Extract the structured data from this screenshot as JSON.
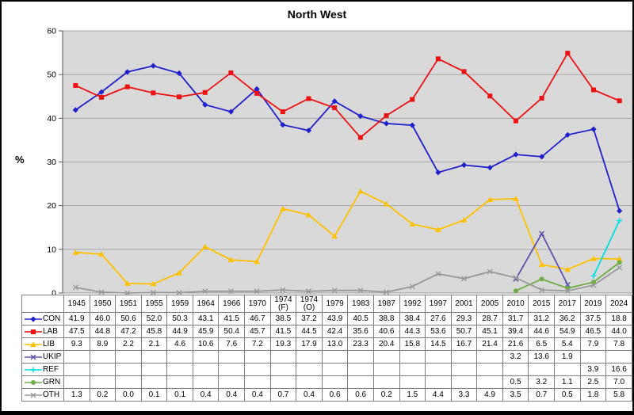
{
  "title": "North West",
  "ylabel": "%",
  "chart_data": {
    "type": "line",
    "title": "North West",
    "xlabel": "",
    "ylabel": "%",
    "ylim": [
      0,
      60
    ],
    "yticks": [
      0,
      10,
      20,
      30,
      40,
      50,
      60
    ],
    "grid": true,
    "plot_bg": "#d9d9d9",
    "gridline_color": "#a6a6a6",
    "axis_color": "#555555",
    "legend_position": "table-left",
    "categories": [
      "1945",
      "1950",
      "1951",
      "1955",
      "1959",
      "1964",
      "1966",
      "1970",
      "1974 (F)",
      "1974 (O)",
      "1979",
      "1983",
      "1987",
      "1992",
      "1997",
      "2001",
      "2005",
      "2010",
      "2015",
      "2017",
      "2019",
      "2024"
    ],
    "series": [
      {
        "name": "CON",
        "color": "#2020cc",
        "marker": "diamond",
        "values": [
          41.9,
          46.0,
          50.6,
          52.0,
          50.3,
          43.1,
          41.5,
          46.7,
          38.5,
          37.2,
          43.9,
          40.5,
          38.8,
          38.4,
          27.6,
          29.3,
          28.7,
          31.7,
          31.2,
          36.2,
          37.5,
          18.8
        ],
        "cells": [
          "41.9",
          "46.0",
          "50.6",
          "52.0",
          "50.3",
          "43.1",
          "41.5",
          "46.7",
          "38.5",
          "37.2",
          "43.9",
          "40.5",
          "38.8",
          "38.4",
          "27.6",
          "29.3",
          "28.7",
          "31.7",
          "31.2",
          "36.2",
          "37.5",
          "18.8"
        ]
      },
      {
        "name": "LAB",
        "color": "#ee1111",
        "marker": "square",
        "values": [
          47.5,
          44.8,
          47.2,
          45.8,
          44.9,
          45.9,
          50.4,
          45.7,
          41.5,
          44.5,
          42.4,
          35.6,
          40.6,
          44.3,
          53.6,
          50.7,
          45.1,
          39.4,
          44.6,
          54.9,
          46.5,
          44.0
        ],
        "cells": [
          "47.5",
          "44.8",
          "47.2",
          "45.8",
          "44.9",
          "45.9",
          "50.4",
          "45.7",
          "41.5",
          "44.5",
          "42.4",
          "35.6",
          "40.6",
          "44.3",
          "53.6",
          "50.7",
          "45.1",
          "39.4",
          "44.6",
          "54.9",
          "46.5",
          "44.0"
        ]
      },
      {
        "name": "LIB",
        "color": "#ffc000",
        "marker": "triangle",
        "values": [
          9.3,
          8.9,
          2.2,
          2.1,
          4.6,
          10.6,
          7.6,
          7.2,
          19.3,
          17.9,
          13.0,
          23.3,
          20.4,
          15.8,
          14.5,
          16.7,
          21.4,
          21.6,
          6.5,
          5.4,
          7.9,
          7.8
        ],
        "cells": [
          "9.3",
          "8.9",
          "2.2",
          "2.1",
          "4.6",
          "10.6",
          "7.6",
          "7.2",
          "19.3",
          "17.9",
          "13.0",
          "23.3",
          "20.4",
          "15.8",
          "14.5",
          "16.7",
          "21.4",
          "21.6",
          "6.5",
          "5.4",
          "7.9",
          "7.8"
        ]
      },
      {
        "name": "UKIP",
        "color": "#5b51a8",
        "marker": "x",
        "values": [
          null,
          null,
          null,
          null,
          null,
          null,
          null,
          null,
          null,
          null,
          null,
          null,
          null,
          null,
          null,
          null,
          null,
          3.2,
          13.6,
          1.9,
          null,
          null
        ],
        "cells": [
          "",
          "",
          "",
          "",
          "",
          "",
          "",
          "",
          "",
          "",
          "",
          "",
          "",
          "",
          "",
          "",
          "",
          "3.2",
          "13.6",
          "1.9",
          "",
          ""
        ]
      },
      {
        "name": "REF",
        "color": "#00e0e0",
        "marker": "plus",
        "values": [
          null,
          null,
          null,
          null,
          null,
          null,
          null,
          null,
          null,
          null,
          null,
          null,
          null,
          null,
          null,
          null,
          null,
          null,
          null,
          null,
          3.9,
          16.6
        ],
        "cells": [
          "",
          "",
          "",
          "",
          "",
          "",
          "",
          "",
          "",
          "",
          "",
          "",
          "",
          "",
          "",
          "",
          "",
          "",
          "",
          "",
          "3.9",
          "16.6"
        ]
      },
      {
        "name": "GRN",
        "color": "#70ad47",
        "marker": "circle",
        "values": [
          null,
          null,
          null,
          null,
          null,
          null,
          null,
          null,
          null,
          null,
          null,
          null,
          null,
          null,
          null,
          null,
          null,
          0.5,
          3.2,
          1.1,
          2.5,
          7.0
        ],
        "cells": [
          "",
          "",
          "",
          "",
          "",
          "",
          "",
          "",
          "",
          "",
          "",
          "",
          "",
          "",
          "",
          "",
          "",
          "0.5",
          "3.2",
          "1.1",
          "2.5",
          "7.0"
        ]
      },
      {
        "name": "OTH",
        "color": "#999999",
        "marker": "x",
        "values": [
          1.3,
          0.2,
          0.0,
          0.1,
          0.1,
          0.4,
          0.4,
          0.4,
          0.7,
          0.4,
          0.6,
          0.6,
          0.2,
          1.5,
          4.4,
          3.3,
          4.9,
          3.5,
          0.7,
          0.5,
          1.8,
          5.8
        ],
        "cells": [
          "1.3",
          "0.2",
          "0.0",
          "0.1",
          "0.1",
          "0.4",
          "0.4",
          "0.4",
          "0.7",
          "0.4",
          "0.6",
          "0.6",
          "0.2",
          "1.5",
          "4.4",
          "3.3",
          "4.9",
          "3.5",
          "0.7",
          "0.5",
          "1.8",
          "5.8"
        ]
      }
    ]
  }
}
